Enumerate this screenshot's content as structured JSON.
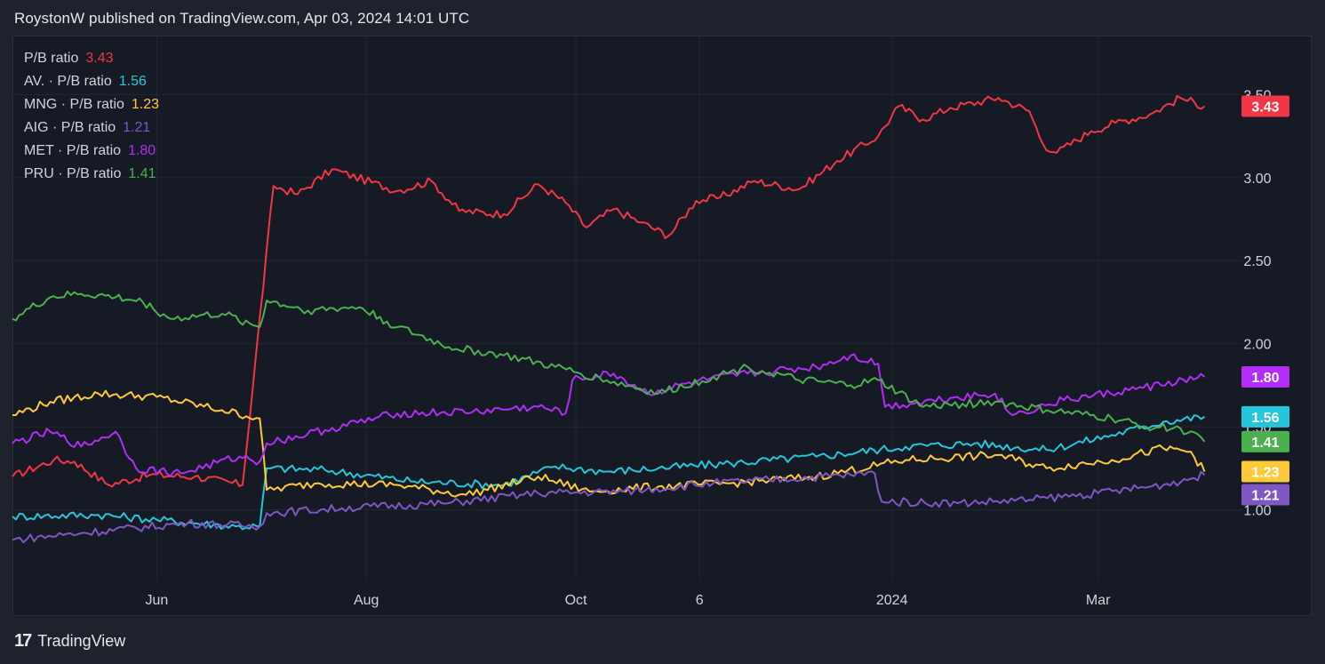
{
  "header": "RoystonW published on TradingView.com, Apr 03, 2024 14:01 UTC",
  "footer": {
    "brand": "TradingView",
    "logo_text": "17"
  },
  "colors": {
    "background": "#161a25",
    "grid": "#232733",
    "axis_text": "#d1d4dc"
  },
  "chart_data": {
    "type": "line",
    "x_ticks": [
      "Jun",
      "Aug",
      "Oct",
      "6",
      "2024",
      "Mar"
    ],
    "y_ticks": [
      "1.00",
      "1.50",
      "2.00",
      "2.50",
      "3.00",
      "3.50"
    ],
    "ylim": [
      0.58,
      3.85
    ],
    "x_range": [
      "2023-04-20",
      "2024-04-12"
    ],
    "grid": true,
    "legend_position": "top-left",
    "series": [
      {
        "name": "P/B ratio",
        "value": "3.43",
        "color": "#f23645",
        "points": [
          [
            "2023-04-20",
            1.2
          ],
          [
            "2023-05-02",
            1.3
          ],
          [
            "2023-05-08",
            1.29
          ],
          [
            "2023-05-18",
            1.15
          ],
          [
            "2023-05-30",
            1.21
          ],
          [
            "2023-06-12",
            1.2
          ],
          [
            "2023-06-26",
            1.15
          ],
          [
            "2023-07-05",
            2.95
          ],
          [
            "2023-07-12",
            2.9
          ],
          [
            "2023-07-22",
            3.05
          ],
          [
            "2023-08-10",
            2.92
          ],
          [
            "2023-08-20",
            2.98
          ],
          [
            "2023-08-28",
            2.8
          ],
          [
            "2023-09-10",
            2.78
          ],
          [
            "2023-09-20",
            2.96
          ],
          [
            "2023-09-28",
            2.85
          ],
          [
            "2023-10-04",
            2.7
          ],
          [
            "2023-10-12",
            2.81
          ],
          [
            "2023-10-20",
            2.73
          ],
          [
            "2023-10-28",
            2.65
          ],
          [
            "2023-11-05",
            2.86
          ],
          [
            "2023-11-12",
            2.88
          ],
          [
            "2023-11-22",
            2.98
          ],
          [
            "2023-12-05",
            2.93
          ],
          [
            "2023-12-16",
            3.1
          ],
          [
            "2023-12-28",
            3.25
          ],
          [
            "2024-01-03",
            3.43
          ],
          [
            "2024-01-10",
            3.35
          ],
          [
            "2024-01-18",
            3.42
          ],
          [
            "2024-02-01",
            3.48
          ],
          [
            "2024-02-10",
            3.4
          ],
          [
            "2024-02-14",
            3.2
          ],
          [
            "2024-02-18",
            3.15
          ],
          [
            "2024-02-28",
            3.28
          ],
          [
            "2024-03-06",
            3.33
          ],
          [
            "2024-03-16",
            3.38
          ],
          [
            "2024-03-25",
            3.48
          ],
          [
            "2024-04-01",
            3.43
          ]
        ]
      },
      {
        "name": "AV. · P/B ratio",
        "value": "1.56",
        "color": "#26c6da",
        "points": [
          [
            "2023-04-20",
            0.96
          ],
          [
            "2023-05-15",
            0.97
          ],
          [
            "2023-06-01",
            0.94
          ],
          [
            "2023-06-24",
            0.9
          ],
          [
            "2023-07-01",
            0.9
          ],
          [
            "2023-07-03",
            1.25
          ],
          [
            "2023-07-20",
            1.24
          ],
          [
            "2023-08-15",
            1.17
          ],
          [
            "2023-09-10",
            1.15
          ],
          [
            "2023-09-25",
            1.26
          ],
          [
            "2023-10-10",
            1.23
          ],
          [
            "2023-10-25",
            1.25
          ],
          [
            "2023-11-15",
            1.28
          ],
          [
            "2023-12-10",
            1.32
          ],
          [
            "2024-01-05",
            1.38
          ],
          [
            "2024-01-25",
            1.4
          ],
          [
            "2024-02-15",
            1.36
          ],
          [
            "2024-03-05",
            1.45
          ],
          [
            "2024-03-20",
            1.53
          ],
          [
            "2024-04-01",
            1.56
          ]
        ]
      },
      {
        "name": "MNG · P/B ratio",
        "value": "1.23",
        "color": "#ffca3a",
        "points": [
          [
            "2023-04-20",
            1.57
          ],
          [
            "2023-05-01",
            1.65
          ],
          [
            "2023-05-15",
            1.7
          ],
          [
            "2023-06-01",
            1.68
          ],
          [
            "2023-06-20",
            1.6
          ],
          [
            "2023-07-01",
            1.55
          ],
          [
            "2023-07-03",
            1.12
          ],
          [
            "2023-07-18",
            1.16
          ],
          [
            "2023-08-10",
            1.15
          ],
          [
            "2023-08-30",
            1.09
          ],
          [
            "2023-09-20",
            1.2
          ],
          [
            "2023-10-05",
            1.11
          ],
          [
            "2023-10-25",
            1.14
          ],
          [
            "2023-11-15",
            1.16
          ],
          [
            "2023-12-10",
            1.2
          ],
          [
            "2024-01-05",
            1.3
          ],
          [
            "2024-02-01",
            1.33
          ],
          [
            "2024-02-15",
            1.25
          ],
          [
            "2024-03-05",
            1.3
          ],
          [
            "2024-03-20",
            1.37
          ],
          [
            "2024-03-28",
            1.35
          ],
          [
            "2024-04-01",
            1.23
          ]
        ]
      },
      {
        "name": "AIG · P/B ratio",
        "value": "1.21",
        "color": "#7e57c2",
        "points": [
          [
            "2023-04-20",
            0.82
          ],
          [
            "2023-05-10",
            0.86
          ],
          [
            "2023-06-10",
            0.92
          ],
          [
            "2023-07-01",
            0.9
          ],
          [
            "2023-07-03",
            0.98
          ],
          [
            "2023-07-25",
            1.01
          ],
          [
            "2023-08-25",
            1.04
          ],
          [
            "2023-09-20",
            1.1
          ],
          [
            "2023-10-15",
            1.11
          ],
          [
            "2023-11-10",
            1.16
          ],
          [
            "2023-12-20",
            1.21
          ],
          [
            "2023-12-27",
            1.22
          ],
          [
            "2023-12-29",
            1.05
          ],
          [
            "2024-01-20",
            1.04
          ],
          [
            "2024-02-10",
            1.06
          ],
          [
            "2024-03-01",
            1.1
          ],
          [
            "2024-03-20",
            1.15
          ],
          [
            "2024-04-01",
            1.21
          ]
        ]
      },
      {
        "name": "MET · P/B ratio",
        "value": "1.80",
        "color": "#b02ef5",
        "points": [
          [
            "2023-04-20",
            1.4
          ],
          [
            "2023-05-01",
            1.47
          ],
          [
            "2023-05-10",
            1.38
          ],
          [
            "2023-05-20",
            1.47
          ],
          [
            "2023-05-26",
            1.25
          ],
          [
            "2023-06-08",
            1.22
          ],
          [
            "2023-06-25",
            1.32
          ],
          [
            "2023-07-01",
            1.29
          ],
          [
            "2023-07-03",
            1.4
          ],
          [
            "2023-07-20",
            1.48
          ],
          [
            "2023-08-10",
            1.58
          ],
          [
            "2023-09-01",
            1.59
          ],
          [
            "2023-09-20",
            1.62
          ],
          [
            "2023-09-28",
            1.58
          ],
          [
            "2023-09-30",
            1.78
          ],
          [
            "2023-10-12",
            1.82
          ],
          [
            "2023-10-22",
            1.7
          ],
          [
            "2023-11-05",
            1.77
          ],
          [
            "2023-11-20",
            1.82
          ],
          [
            "2023-12-10",
            1.86
          ],
          [
            "2023-12-20",
            1.93
          ],
          [
            "2023-12-28",
            1.88
          ],
          [
            "2023-12-30",
            1.62
          ],
          [
            "2024-01-20",
            1.68
          ],
          [
            "2024-01-31",
            1.7
          ],
          [
            "2024-02-05",
            1.57
          ],
          [
            "2024-02-20",
            1.66
          ],
          [
            "2024-03-10",
            1.72
          ],
          [
            "2024-04-01",
            1.8
          ]
        ]
      },
      {
        "name": "PRU · P/B ratio",
        "value": "1.41",
        "color": "#4caf50",
        "points": [
          [
            "2023-04-20",
            2.15
          ],
          [
            "2023-05-01",
            2.28
          ],
          [
            "2023-05-10",
            2.3
          ],
          [
            "2023-05-20",
            2.28
          ],
          [
            "2023-05-28",
            2.25
          ],
          [
            "2023-06-05",
            2.15
          ],
          [
            "2023-06-20",
            2.18
          ],
          [
            "2023-07-01",
            2.1
          ],
          [
            "2023-07-03",
            2.26
          ],
          [
            "2023-07-15",
            2.2
          ],
          [
            "2023-07-30",
            2.22
          ],
          [
            "2023-08-10",
            2.1
          ],
          [
            "2023-08-25",
            1.98
          ],
          [
            "2023-09-10",
            1.93
          ],
          [
            "2023-09-25",
            1.86
          ],
          [
            "2023-10-10",
            1.78
          ],
          [
            "2023-10-25",
            1.7
          ],
          [
            "2023-11-10",
            1.8
          ],
          [
            "2023-11-20",
            1.86
          ],
          [
            "2023-12-05",
            1.78
          ],
          [
            "2023-12-20",
            1.75
          ],
          [
            "2023-12-28",
            1.78
          ],
          [
            "2024-01-10",
            1.62
          ],
          [
            "2024-01-31",
            1.65
          ],
          [
            "2024-02-15",
            1.6
          ],
          [
            "2024-03-05",
            1.55
          ],
          [
            "2024-03-15",
            1.5
          ],
          [
            "2024-03-25",
            1.49
          ],
          [
            "2024-04-01",
            1.41
          ]
        ]
      }
    ]
  }
}
